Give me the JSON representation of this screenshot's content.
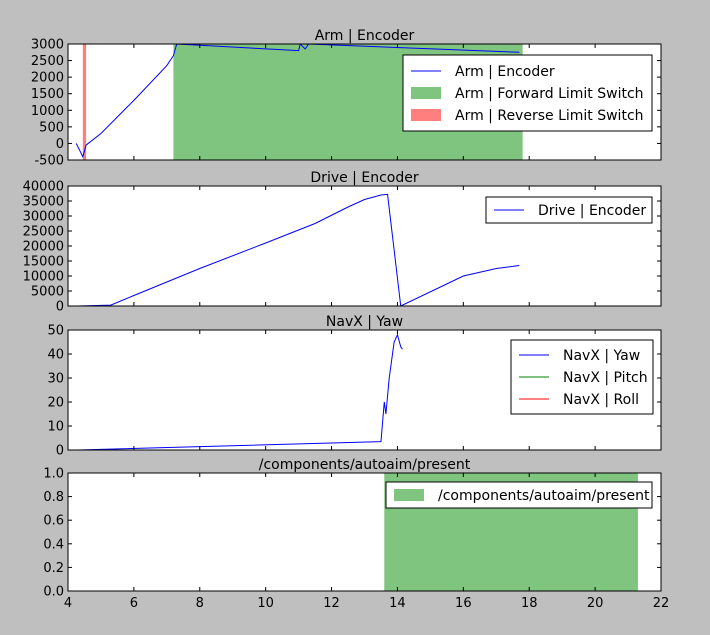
{
  "chart_data": [
    {
      "type": "line",
      "title": "Arm | Encoder",
      "xlim": [
        4,
        22
      ],
      "ylim": [
        -500,
        3000
      ],
      "yticks": [
        -500,
        0,
        500,
        1000,
        1500,
        2000,
        2500,
        3000
      ],
      "show_xticklabels": false,
      "series": [
        {
          "name": "Arm | Encoder",
          "kind": "line",
          "color": "#0000ff",
          "points": [
            [
              4.25,
              0
            ],
            [
              4.45,
              -400
            ],
            [
              4.55,
              -50
            ],
            [
              5.0,
              300
            ],
            [
              6.0,
              1300
            ],
            [
              7.0,
              2350
            ],
            [
              7.2,
              2650
            ],
            [
              7.3,
              3000
            ],
            [
              11.0,
              2800
            ],
            [
              11.05,
              3000
            ],
            [
              11.2,
              2850
            ],
            [
              11.3,
              3000
            ],
            [
              17.7,
              2750
            ]
          ]
        },
        {
          "name": "Arm | Forward Limit Switch",
          "kind": "span",
          "color": "#7fc47f",
          "ranges": [
            [
              7.2,
              17.8
            ]
          ]
        },
        {
          "name": "Arm | Reverse Limit Switch",
          "kind": "span",
          "color": "#ff7f7f",
          "ranges": [
            [
              4.45,
              4.55
            ]
          ]
        }
      ]
    },
    {
      "type": "line",
      "title": "Drive | Encoder",
      "xlim": [
        4,
        22
      ],
      "ylim": [
        0,
        40000
      ],
      "yticks": [
        0,
        5000,
        10000,
        15000,
        20000,
        25000,
        30000,
        35000,
        40000
      ],
      "show_xticklabels": false,
      "series": [
        {
          "name": "Drive | Encoder",
          "kind": "line",
          "color": "#0000ff",
          "points": [
            [
              4.3,
              0
            ],
            [
              5.3,
              300
            ],
            [
              6.0,
              3500
            ],
            [
              8.0,
              12500
            ],
            [
              10.0,
              21000
            ],
            [
              11.5,
              27500
            ],
            [
              12.5,
              33000
            ],
            [
              13.0,
              35500
            ],
            [
              13.5,
              37000
            ],
            [
              13.7,
              37200
            ],
            [
              14.1,
              0
            ],
            [
              16.0,
              10000
            ],
            [
              17.0,
              12500
            ],
            [
              17.7,
              13500
            ]
          ]
        }
      ]
    },
    {
      "type": "line",
      "title": "NavX | Yaw",
      "xlim": [
        4,
        22
      ],
      "ylim": [
        0,
        50
      ],
      "yticks": [
        0,
        10,
        20,
        30,
        40,
        50
      ],
      "show_xticklabels": false,
      "series": [
        {
          "name": "NavX | Yaw",
          "kind": "line",
          "color": "#0000ff",
          "points": [
            [
              4.3,
              0
            ],
            [
              13.5,
              3.5
            ],
            [
              13.6,
              20
            ],
            [
              13.65,
              15
            ],
            [
              13.75,
              30
            ],
            [
              13.9,
              45
            ],
            [
              14.0,
              48
            ],
            [
              14.1,
              43
            ],
            [
              14.15,
              42
            ]
          ]
        },
        {
          "name": "NavX | Pitch",
          "kind": "line",
          "color": "#008000",
          "points": []
        },
        {
          "name": "NavX | Roll",
          "kind": "line",
          "color": "#ff0000",
          "points": []
        }
      ]
    },
    {
      "type": "area",
      "title": "/components/autoaim/present",
      "xlim": [
        4,
        22
      ],
      "ylim": [
        0,
        1
      ],
      "yticks": [
        0.0,
        0.2,
        0.4,
        0.6,
        0.8,
        1.0
      ],
      "xticks": [
        4,
        6,
        8,
        10,
        12,
        14,
        16,
        18,
        20,
        22
      ],
      "show_xticklabels": true,
      "series": [
        {
          "name": "/components/autoaim/present",
          "kind": "span",
          "color": "#7fc47f",
          "ranges": [
            [
              13.6,
              21.3
            ]
          ]
        }
      ]
    }
  ]
}
